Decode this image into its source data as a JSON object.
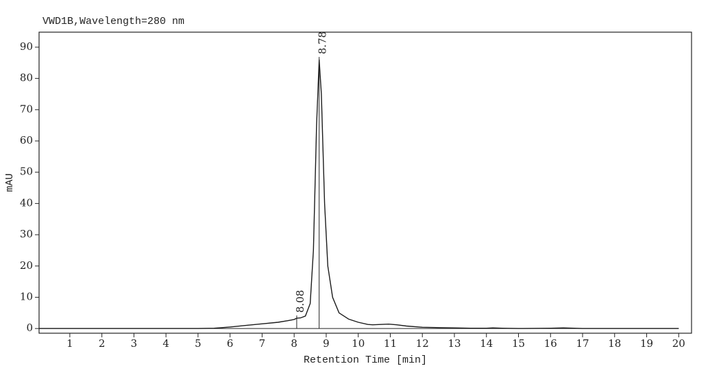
{
  "chart_data": {
    "type": "line",
    "title": "VWD1B,Wavelength=280 nm",
    "x_label": "Retention Time [min]",
    "y_label": "mAU",
    "x": [
      0.04,
      1,
      2,
      3,
      4,
      5,
      5.5,
      6,
      6.5,
      7,
      7.5,
      7.8,
      8,
      8.08,
      8.2,
      8.35,
      8.5,
      8.6,
      8.7,
      8.78,
      8.85,
      8.95,
      9.05,
      9.2,
      9.4,
      9.7,
      10,
      10.3,
      10.45,
      10.7,
      10.95,
      11.2,
      11.5,
      12,
      12.5,
      13,
      13.5,
      14,
      14.2,
      14.5,
      15,
      16,
      16.4,
      17,
      18,
      19,
      20
    ],
    "series": [
      {
        "name": "VWD1B",
        "color": "#1a1a1a",
        "values": [
          0,
          0,
          0,
          0,
          0,
          0,
          0.1,
          0.5,
          1,
          1.5,
          2,
          2.5,
          2.9,
          3.3,
          3.4,
          4,
          8,
          25,
          65,
          86,
          75,
          40,
          20,
          10,
          5,
          3,
          2,
          1.3,
          1.2,
          1.3,
          1.4,
          1.2,
          0.8,
          0.4,
          0.3,
          0.2,
          0.1,
          0.1,
          0.2,
          0.1,
          0,
          0.1,
          0.2,
          0,
          0,
          0,
          0
        ]
      }
    ],
    "peak_labels": [
      8.08,
      8.78
    ],
    "xlim": [
      0.04,
      20.4
    ],
    "ylim": [
      -1.5,
      94.8
    ],
    "xticks": [
      1,
      2,
      3,
      4,
      5,
      6,
      7,
      8,
      9,
      10,
      11,
      12,
      13,
      14,
      15,
      16,
      17,
      18,
      19,
      20
    ],
    "yticks": [
      0,
      10,
      20,
      30,
      40,
      50,
      60,
      70,
      80,
      90
    ]
  }
}
